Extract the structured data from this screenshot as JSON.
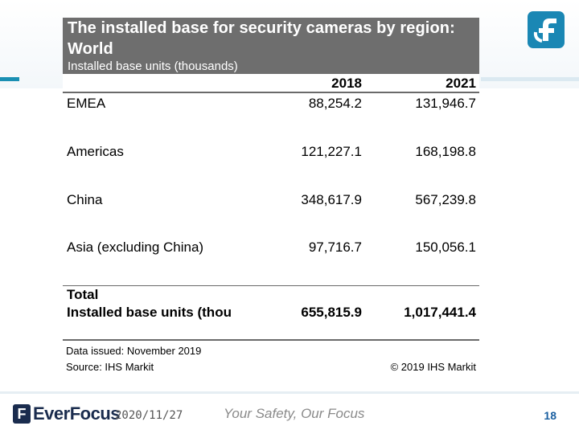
{
  "slide": {
    "title": "The installed base for security cameras by region: World",
    "subtitle": "Installed base units (thousands)",
    "years": [
      "2018",
      "2021"
    ],
    "rows": [
      {
        "region": "EMEA",
        "v2018": "88,254.2",
        "v2021": "131,946.7"
      },
      {
        "region": "Americas",
        "v2018": "121,227.1",
        "v2021": "168,198.8"
      },
      {
        "region": "China",
        "v2018": "348,617.9",
        "v2021": "567,239.8"
      },
      {
        "region": "Asia (excluding China)",
        "v2018": "97,716.7",
        "v2021": "150,056.1"
      }
    ],
    "total": {
      "label_line1": "Total",
      "label_line2": "Installed base units (thou",
      "v2018": "655,815.9",
      "v2021": "1,017,441.4"
    },
    "data_issued": "Data issued: November 2019",
    "source": "Source: IHS Markit",
    "copyright": "© 2019 IHS Markit"
  },
  "footer": {
    "brand": "EverFocus",
    "date": "2020/11/27",
    "slogan": "Your Safety, Our Focus",
    "page_number": "18"
  },
  "icons": {
    "top_logo": "everfocus-logo-icon",
    "footer_logo": "everfocus-mark-icon"
  },
  "colors": {
    "title_bg": "#6e6e6e",
    "accent": "#1a87b4",
    "brand_navy": "#1a2c4e",
    "page_number": "#1a5fa0"
  }
}
